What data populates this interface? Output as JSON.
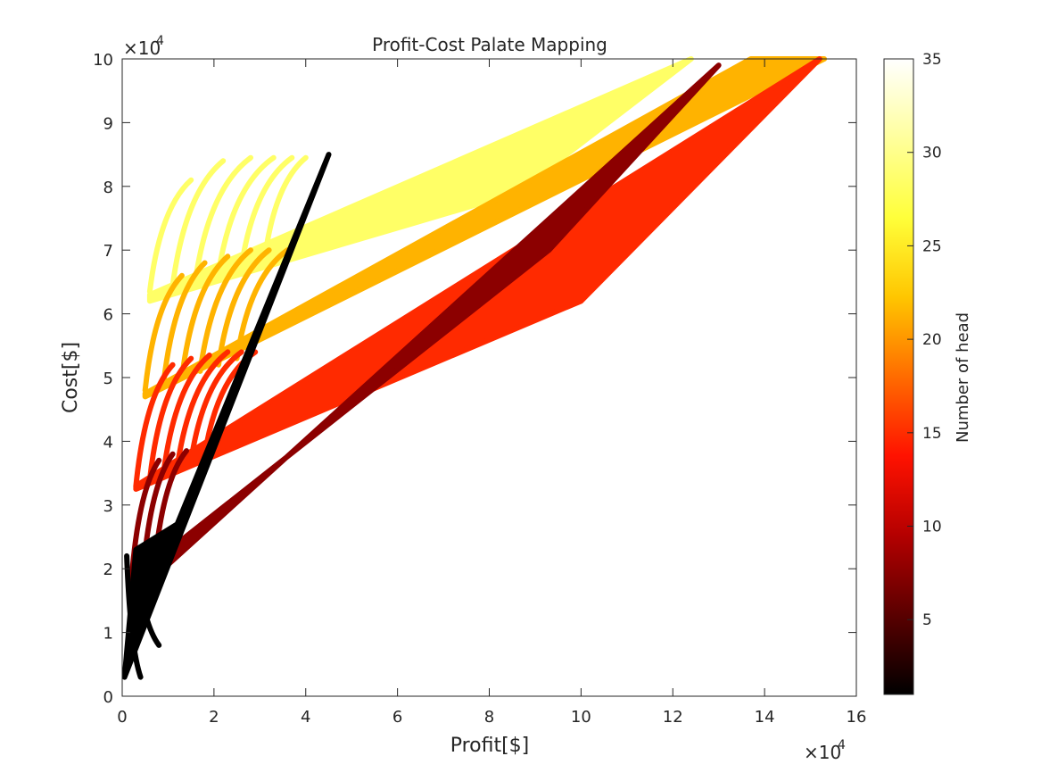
{
  "chart_data": {
    "type": "scatter",
    "title": "Profit-Cost Palate Mapping",
    "xlabel": "Profit[$]",
    "ylabel": "Cost[$]",
    "x_exponent_label": "×10",
    "y_exponent_label": "×10",
    "exponent": "4",
    "xlim": [
      0,
      160000
    ],
    "ylim": [
      0,
      100000
    ],
    "xticks": [
      0,
      20000,
      40000,
      60000,
      80000,
      100000,
      120000,
      140000,
      160000
    ],
    "xtick_labels": [
      "0",
      "2",
      "4",
      "6",
      "8",
      "10",
      "12",
      "14",
      "16"
    ],
    "yticks": [
      0,
      10000,
      20000,
      30000,
      40000,
      50000,
      60000,
      70000,
      80000,
      90000,
      100000
    ],
    "ytick_labels": [
      "0",
      "1",
      "2",
      "3",
      "4",
      "5",
      "6",
      "7",
      "8",
      "9",
      "10"
    ],
    "grid": false,
    "colormap": "hot",
    "colorbar": {
      "label": "Number of head",
      "limits": [
        1,
        35
      ],
      "ticks": [
        5,
        10,
        15,
        20,
        25,
        30,
        35
      ],
      "tick_labels": [
        "5",
        "10",
        "15",
        "20",
        "25",
        "30",
        "35"
      ],
      "colors": [
        "#000000",
        "#5a0000",
        "#b40000",
        "#ff1200",
        "#ff6c00",
        "#ffc600",
        "#ffff3a",
        "#ffff9c",
        "#ffffff"
      ]
    },
    "series": [
      {
        "heads": 28,
        "color": "#ffff66",
        "band": [
          [
            6000,
            63000
          ],
          [
            124000,
            100000
          ],
          [
            86000,
            79000
          ],
          [
            6000,
            62000
          ]
        ],
        "arcs": [
          [
            [
              6000,
              63500
            ],
            [
              15000,
              81000
            ]
          ],
          [
            [
              11000,
              64500
            ],
            [
              22000,
              84000
            ]
          ],
          [
            [
              16000,
              65500
            ],
            [
              28000,
              84500
            ]
          ],
          [
            [
              21000,
              66500
            ],
            [
              33000,
              84500
            ]
          ],
          [
            [
              26000,
              67500
            ],
            [
              37000,
              84500
            ]
          ],
          [
            [
              31000,
              68500
            ],
            [
              40000,
              84500
            ]
          ]
        ]
      },
      {
        "heads": 22,
        "color": "#ffb300",
        "band": [
          [
            5000,
            47500
          ],
          [
            137000,
            100000
          ],
          [
            153000,
            100000
          ],
          [
            5000,
            47000
          ]
        ],
        "arcs": [
          [
            [
              5000,
              48000
            ],
            [
              13000,
              66000
            ]
          ],
          [
            [
              9000,
              49000
            ],
            [
              18000,
              68000
            ]
          ],
          [
            [
              13000,
              50000
            ],
            [
              23000,
              69000
            ]
          ],
          [
            [
              17000,
              51000
            ],
            [
              28000,
              70000
            ]
          ],
          [
            [
              21000,
              52000
            ],
            [
              32000,
              70000
            ]
          ],
          [
            [
              25000,
              53000
            ],
            [
              36000,
              70000
            ]
          ]
        ]
      },
      {
        "heads": 15,
        "color": "#ff2a00",
        "band": [
          [
            3000,
            33000
          ],
          [
            152000,
            100000
          ],
          [
            100000,
            62000
          ],
          [
            3000,
            32500
          ]
        ],
        "arcs": [
          [
            [
              3000,
              33000
            ],
            [
              11000,
              52000
            ]
          ],
          [
            [
              6000,
              34000
            ],
            [
              15000,
              53000
            ]
          ],
          [
            [
              9000,
              35000
            ],
            [
              19000,
              53500
            ]
          ],
          [
            [
              12000,
              36000
            ],
            [
              23000,
              54000
            ]
          ],
          [
            [
              15000,
              37000
            ],
            [
              26000,
              54000
            ]
          ],
          [
            [
              18000,
              38000
            ],
            [
              29000,
              54000
            ]
          ]
        ]
      },
      {
        "heads": 8,
        "color": "#8c0000",
        "band": [
          [
            1500,
            18000
          ],
          [
            93000,
            70000
          ],
          [
            130000,
            99000
          ],
          [
            9000,
            20000
          ],
          [
            1500,
            17500
          ]
        ],
        "arcs": [
          [
            [
              2000,
              18000
            ],
            [
              8000,
              37000
            ]
          ],
          [
            [
              4500,
              19000
            ],
            [
              11000,
              38000
            ]
          ],
          [
            [
              7000,
              20000
            ],
            [
              14000,
              38500
            ]
          ]
        ]
      },
      {
        "heads": 1,
        "color": "#000000",
        "band": [
          [
            500,
            3000
          ],
          [
            45000,
            85000
          ],
          [
            12000,
            27000
          ],
          [
            3000,
            23000
          ],
          [
            500,
            3000
          ]
        ],
        "arcs": [
          [
            [
              1000,
              22000
            ],
            [
              4000,
              3000
            ]
          ],
          [
            [
              3000,
              22500
            ],
            [
              8000,
              8000
            ]
          ]
        ]
      }
    ]
  }
}
